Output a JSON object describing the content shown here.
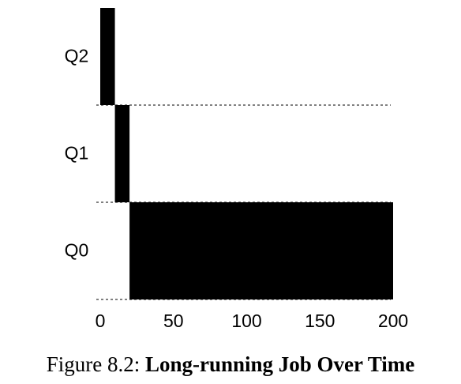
{
  "chart_data": {
    "type": "gantt",
    "tasks": [
      {
        "category": "Q2",
        "start": 0,
        "end": 10
      },
      {
        "category": "Q1",
        "start": 10,
        "end": 20
      },
      {
        "category": "Q0",
        "start": 20,
        "end": 200
      }
    ],
    "color": "#000000",
    "xlim": [
      0,
      200
    ],
    "xticks": [
      0,
      50,
      100,
      150,
      200
    ],
    "caption_label": "Figure 8.2:",
    "caption_title": "Long-running Job Over Time"
  }
}
